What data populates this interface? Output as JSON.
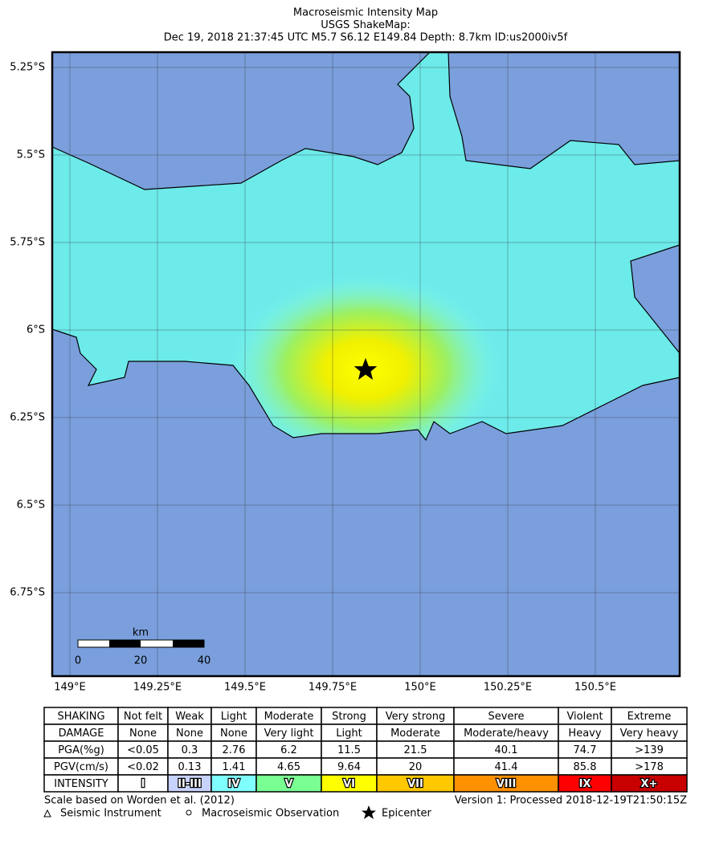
{
  "title": {
    "lines": [
      "Macroseismic Intensity Map",
      "USGS ShakeMap:",
      "Dec 19, 2018 21:37:45 UTC M5.7 S6.12 E149.84 Depth: 8.7km ID:us2000iv5f"
    ]
  },
  "map": {
    "lat_labels": [
      "5.25°S",
      "5.5°S",
      "5.75°S",
      "6°S",
      "6.25°S",
      "6.5°S",
      "6.75°S"
    ],
    "lon_labels": [
      "149°E",
      "149.25°E",
      "149.5°E",
      "149.75°E",
      "150°E",
      "150.25°E",
      "150.5°E"
    ],
    "scale_bar": {
      "unit": "km",
      "ticks": [
        "0",
        "20",
        "40"
      ]
    }
  },
  "legend_table": {
    "rows": [
      [
        "SHAKING",
        "Not felt",
        "Weak",
        "Light",
        "Moderate",
        "Strong",
        "Very strong",
        "Severe",
        "Violent",
        "Extreme"
      ],
      [
        "DAMAGE",
        "None",
        "None",
        "None",
        "Very light",
        "Light",
        "Moderate",
        "Moderate/heavy",
        "Heavy",
        "Very heavy"
      ],
      [
        "PGA(%g)",
        "<0.05",
        "0.3",
        "2.76",
        "6.2",
        "11.5",
        "21.5",
        "40.1",
        "74.7",
        ">139"
      ],
      [
        "PGV(cm/s)",
        "<0.02",
        "0.13",
        "1.41",
        "4.65",
        "9.64",
        "20",
        "41.4",
        "85.8",
        ">178"
      ],
      [
        "INTENSITY",
        "I",
        "II-III",
        "IV",
        "V",
        "VI",
        "VII",
        "VIII",
        "IX",
        "X+"
      ]
    ],
    "intensity_colors": [
      "#ffffff",
      "#c8d2ff",
      "#80ffff",
      "#7aff93",
      "#ffff00",
      "#ffc800",
      "#ff9100",
      "#ff0000",
      "#c80000"
    ]
  },
  "footer": {
    "reference": "Scale based on Worden et al. (2012)",
    "version": "Version 1: Processed 2018-12-19T21:50:15Z",
    "symbols": [
      "Seismic Instrument",
      "Macroseismic Observation",
      "Epicenter"
    ]
  }
}
